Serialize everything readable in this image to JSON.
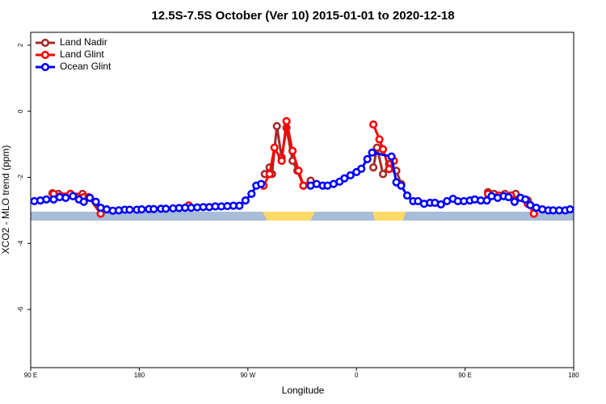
{
  "chart_data": {
    "type": "line",
    "title": "12.5S-7.5S October (Ver 10)   2015-01-01 to 2020-12-18",
    "x_label": "Longitude",
    "y_label": "XCO2 - MLO trend (ppm)",
    "xlim": [
      90,
      540
    ],
    "xticks": [
      {
        "value": 90,
        "label": "90 E"
      },
      {
        "value": 180,
        "label": "180"
      },
      {
        "value": 270,
        "label": "90 W"
      },
      {
        "value": 360,
        "label": "0"
      },
      {
        "value": 450,
        "label": "90 E"
      },
      {
        "value": 540,
        "label": "180"
      }
    ],
    "ylim": [
      -7.76,
      2.39
    ],
    "yticks": [
      2,
      0,
      -2,
      -4,
      -6
    ],
    "legend": "top-left",
    "series": [
      {
        "name": "Land Nadir",
        "color": "#a52a2a",
        "x": [
          108,
          113,
          123,
          133,
          200,
          284,
          288,
          290,
          294,
          298,
          302,
          307,
          311,
          316,
          322,
          350,
          374,
          377,
          382,
          387,
          393,
          397,
          430,
          469,
          474,
          483,
          492,
          502
        ],
        "values": [
          -2.48,
          -2.5,
          -2.5,
          -2.5,
          null,
          -1.9,
          -1.7,
          -1.9,
          -0.45,
          -1.4,
          -0.5,
          -1.5,
          -1.8,
          -2.25,
          -2.1,
          null,
          -1.7,
          -1.1,
          -1.9,
          -1.6,
          -1.8,
          -2.2,
          null,
          -2.45,
          -2.5,
          -2.5,
          -2.5,
          -2.7
        ]
      },
      {
        "name": "Land Glint",
        "color": "#ff0000",
        "x": [
          109,
          123,
          129,
          134,
          138,
          148,
          190,
          221,
          250,
          283,
          288,
          292,
          298,
          302,
          307,
          312,
          316,
          350,
          374,
          379,
          382,
          387,
          391,
          430,
          469,
          478,
          488,
          502,
          507
        ],
        "values": [
          -2.5,
          -2.5,
          -2.6,
          -2.6,
          -2.6,
          -3.1,
          null,
          -2.85,
          null,
          -2.25,
          -1.9,
          -1.1,
          -1.5,
          -0.3,
          -1.2,
          -1.8,
          -2.25,
          null,
          -0.4,
          -0.85,
          -1.15,
          -1.75,
          -1.5,
          null,
          -2.5,
          -2.55,
          -2.55,
          -2.8,
          -3.1
        ]
      },
      {
        "name": "Ocean Glint",
        "color": "#0000ff",
        "x": [
          93,
          98,
          103,
          109,
          114,
          119,
          125,
          130,
          134,
          139,
          144,
          148,
          153,
          158,
          163,
          168,
          172,
          178,
          182,
          188,
          192,
          198,
          202,
          208,
          213,
          218,
          223,
          228,
          233,
          238,
          243,
          248,
          253,
          258,
          263,
          268,
          273,
          277,
          281,
          300,
          322,
          327,
          332,
          336,
          341,
          346,
          350,
          355,
          360,
          364,
          369,
          373,
          389,
          393,
          397,
          402,
          407,
          411,
          416,
          421,
          425,
          430,
          435,
          440,
          444,
          449,
          454,
          458,
          463,
          468,
          472,
          477,
          482,
          486,
          491,
          496,
          500,
          504,
          509,
          514,
          519,
          523,
          528,
          533,
          537
        ],
        "values": [
          -2.72,
          -2.7,
          -2.67,
          -2.67,
          -2.6,
          -2.62,
          -2.57,
          -2.67,
          -2.74,
          -2.62,
          -2.74,
          -2.92,
          -2.97,
          -3.01,
          -3.0,
          -2.98,
          -2.98,
          -2.98,
          -2.97,
          -2.96,
          -2.96,
          -2.95,
          -2.95,
          -2.94,
          -2.93,
          -2.92,
          -2.92,
          -2.91,
          -2.9,
          -2.9,
          -2.88,
          -2.88,
          -2.87,
          -2.86,
          -2.86,
          -2.7,
          -2.5,
          -2.25,
          -2.2,
          null,
          -2.25,
          -2.2,
          -2.25,
          -2.25,
          -2.2,
          -2.13,
          -2.03,
          -1.94,
          -1.84,
          -1.74,
          -1.45,
          -1.25,
          -1.37,
          -2.15,
          -2.25,
          -2.55,
          -2.72,
          -2.72,
          -2.8,
          -2.77,
          -2.77,
          -2.82,
          -2.72,
          -2.65,
          -2.72,
          -2.72,
          -2.7,
          -2.67,
          -2.7,
          -2.7,
          -2.57,
          -2.62,
          -2.57,
          -2.6,
          -2.74,
          -2.62,
          -2.67,
          -2.84,
          -2.92,
          -2.97,
          -3.0,
          -3.0,
          -3.0,
          -3.0,
          -2.97
        ]
      }
    ]
  }
}
